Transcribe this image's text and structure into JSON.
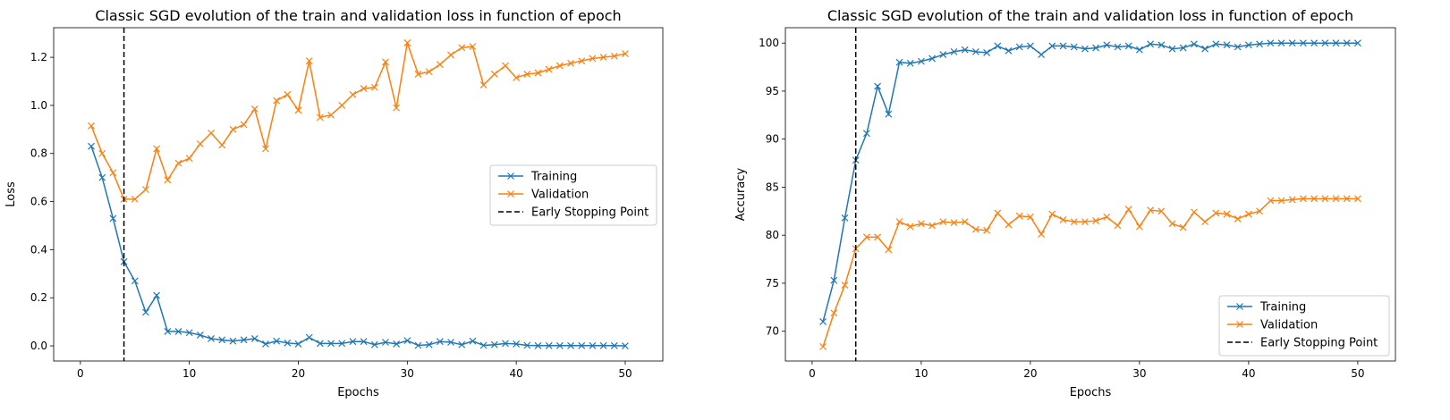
{
  "chart_data": [
    {
      "type": "line",
      "title": "Classic SGD evolution of the train and validation loss in function of epoch",
      "xlabel": "Epochs",
      "ylabel": "Loss",
      "xlim": [
        -2.45,
        53.45
      ],
      "ylim": [
        -0.063,
        1.323
      ],
      "xticks": [
        0,
        10,
        20,
        30,
        40,
        50
      ],
      "yticks": [
        0.0,
        0.2,
        0.4,
        0.6,
        0.8,
        1.0,
        1.2
      ],
      "yticks_decimals": 1,
      "legend_position": "center-right",
      "marker": "x",
      "grid": false,
      "vline": {
        "x": 4,
        "label": "Early Stopping Point",
        "color": "#000000",
        "style": "dashed"
      },
      "x": [
        1,
        2,
        3,
        4,
        5,
        6,
        7,
        8,
        9,
        10,
        11,
        12,
        13,
        14,
        15,
        16,
        17,
        18,
        19,
        20,
        21,
        22,
        23,
        24,
        25,
        26,
        27,
        28,
        29,
        30,
        31,
        32,
        33,
        34,
        35,
        36,
        37,
        38,
        39,
        40,
        41,
        42,
        43,
        44,
        45,
        46,
        47,
        48,
        49,
        50
      ],
      "series": [
        {
          "name": "Training",
          "color": "#1f77b4",
          "values": [
            0.83,
            0.7,
            0.53,
            0.35,
            0.27,
            0.14,
            0.21,
            0.06,
            0.06,
            0.055,
            0.045,
            0.03,
            0.025,
            0.02,
            0.025,
            0.03,
            0.008,
            0.02,
            0.012,
            0.008,
            0.035,
            0.01,
            0.01,
            0.01,
            0.018,
            0.018,
            0.005,
            0.015,
            0.008,
            0.022,
            0.002,
            0.005,
            0.018,
            0.015,
            0.005,
            0.02,
            0.002,
            0.005,
            0.01,
            0.008,
            0.002,
            0.001,
            0.001,
            0.001,
            0.001,
            0.001,
            0.001,
            0.001,
            0.001,
            0.0
          ]
        },
        {
          "name": "Validation",
          "color": "#ff7f0e",
          "values": [
            0.915,
            0.8,
            0.72,
            0.61,
            0.61,
            0.65,
            0.82,
            0.69,
            0.76,
            0.78,
            0.84,
            0.885,
            0.835,
            0.9,
            0.92,
            0.985,
            0.82,
            1.02,
            1.045,
            0.98,
            1.185,
            0.95,
            0.96,
            1.0,
            1.045,
            1.07,
            1.075,
            1.18,
            0.99,
            1.26,
            1.13,
            1.14,
            1.17,
            1.21,
            1.24,
            1.245,
            1.085,
            1.13,
            1.165,
            1.115,
            1.13,
            1.135,
            1.15,
            1.165,
            1.175,
            1.185,
            1.195,
            1.2,
            1.205,
            1.215
          ]
        }
      ]
    },
    {
      "type": "line",
      "title": "Classic SGD evolution of the train and validation loss in function of epoch",
      "xlabel": "Epochs",
      "ylabel": "Accuracy",
      "xlim": [
        -2.45,
        53.45
      ],
      "ylim": [
        66.9,
        101.6
      ],
      "xticks": [
        0,
        10,
        20,
        30,
        40,
        50
      ],
      "yticks": [
        70,
        75,
        80,
        85,
        90,
        95,
        100
      ],
      "yticks_decimals": 0,
      "legend_position": "lower-right",
      "marker": "x",
      "grid": false,
      "vline": {
        "x": 4,
        "label": "Early Stopping Point",
        "color": "#000000",
        "style": "dashed"
      },
      "x": [
        1,
        2,
        3,
        4,
        5,
        6,
        7,
        8,
        9,
        10,
        11,
        12,
        13,
        14,
        15,
        16,
        17,
        18,
        19,
        20,
        21,
        22,
        23,
        24,
        25,
        26,
        27,
        28,
        29,
        30,
        31,
        32,
        33,
        34,
        35,
        36,
        37,
        38,
        39,
        40,
        41,
        42,
        43,
        44,
        45,
        46,
        47,
        48,
        49,
        50
      ],
      "series": [
        {
          "name": "Training",
          "color": "#1f77b4",
          "values": [
            71.0,
            75.3,
            81.8,
            87.8,
            90.6,
            95.5,
            92.6,
            98.0,
            97.9,
            98.1,
            98.4,
            98.8,
            99.1,
            99.3,
            99.1,
            99.0,
            99.7,
            99.2,
            99.6,
            99.7,
            98.8,
            99.7,
            99.7,
            99.6,
            99.4,
            99.5,
            99.8,
            99.6,
            99.7,
            99.3,
            99.9,
            99.8,
            99.4,
            99.5,
            99.9,
            99.4,
            99.9,
            99.8,
            99.6,
            99.8,
            99.9,
            100,
            100,
            100,
            100,
            100,
            100,
            100,
            100,
            100
          ]
        },
        {
          "name": "Validation",
          "color": "#ff7f0e",
          "values": [
            68.4,
            71.9,
            74.8,
            78.6,
            79.8,
            79.8,
            78.5,
            81.4,
            80.9,
            81.2,
            81.0,
            81.4,
            81.3,
            81.4,
            80.6,
            80.5,
            82.3,
            81.1,
            82.0,
            81.9,
            80.1,
            82.2,
            81.6,
            81.4,
            81.4,
            81.5,
            81.9,
            81.0,
            82.7,
            80.9,
            82.6,
            82.5,
            81.2,
            80.8,
            82.4,
            81.4,
            82.3,
            82.2,
            81.7,
            82.2,
            82.5,
            83.6,
            83.6,
            83.7,
            83.8,
            83.8,
            83.8,
            83.8,
            83.8,
            83.8
          ]
        }
      ]
    }
  ]
}
